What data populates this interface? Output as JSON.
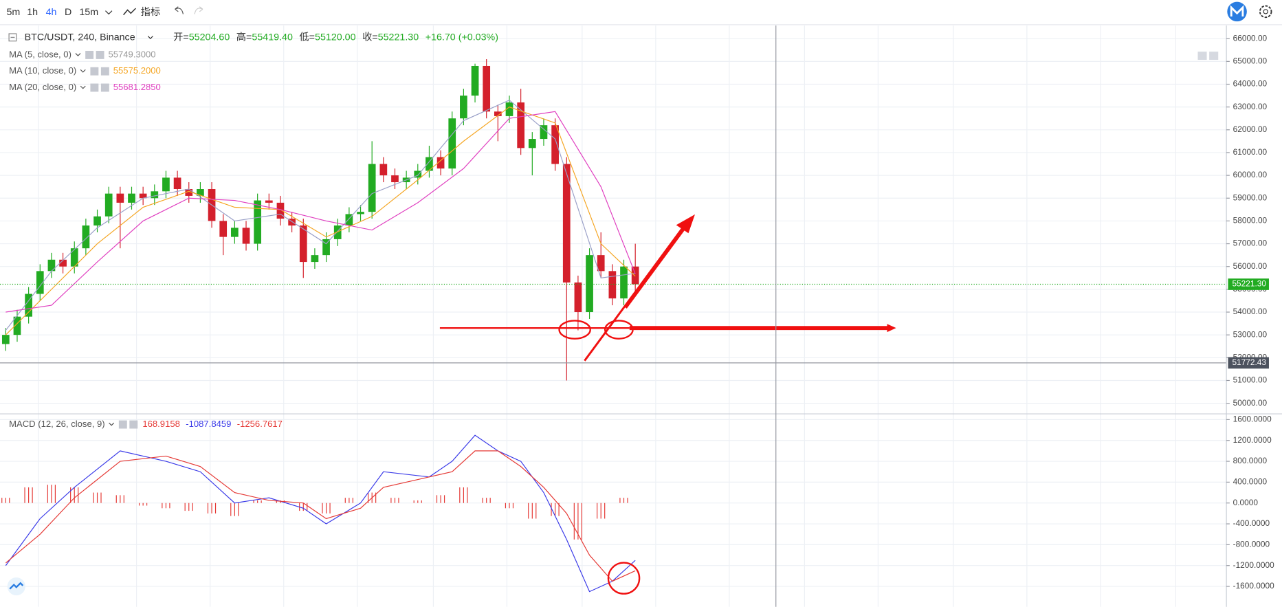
{
  "toolbar": {
    "intervals": [
      "5m",
      "1h",
      "4h",
      "D",
      "15m"
    ],
    "indicators": "指标"
  },
  "header": {
    "symbol": "BTC/USDT, 240, Binance",
    "ohlc": [
      {
        "label": "开=",
        "value": "55204.60"
      },
      {
        "label": "高=",
        "value": "55419.40"
      },
      {
        "label": "低=",
        "value": "55120.00"
      },
      {
        "label": "收=",
        "value": "55221.30"
      }
    ],
    "change": "+16.70 (+0.03%)"
  },
  "chart_data": [
    {
      "type": "candlestick",
      "up_color": "#22ab22",
      "down_color": "#d4202c",
      "open": [
        52600,
        53000,
        53800,
        54800,
        55800,
        56300,
        56000,
        56800,
        57800,
        58200,
        59200,
        58800,
        59200,
        59000,
        59300,
        59900,
        59400,
        59100,
        59400,
        58000,
        57300,
        57700,
        57000,
        58900,
        58800,
        58100,
        57800,
        56200,
        56500,
        57200,
        57800,
        58300,
        58400,
        60500,
        60000,
        59700,
        59900,
        60200,
        60800,
        60300,
        62500,
        63500,
        64800,
        62800,
        62600,
        63200,
        61200,
        61600,
        62200,
        60500,
        55300,
        54000,
        56500,
        55800,
        54600,
        56000
      ],
      "high": [
        53300,
        54100,
        55100,
        56100,
        56600,
        56600,
        57100,
        58100,
        58500,
        59500,
        59500,
        59500,
        59500,
        59600,
        60200,
        60200,
        59700,
        59700,
        59700,
        58300,
        58000,
        58000,
        59200,
        59200,
        59100,
        58400,
        58100,
        56800,
        57500,
        58100,
        58600,
        58700,
        61500,
        60800,
        60300,
        60200,
        60500,
        61300,
        61100,
        62800,
        63800,
        64900,
        65100,
        63100,
        63500,
        63800,
        61900,
        62500,
        62500,
        60800,
        55600,
        56800,
        57500,
        56100,
        56300,
        57000
      ],
      "low": [
        52300,
        52700,
        53500,
        54500,
        55500,
        55700,
        55700,
        56500,
        57500,
        57900,
        56800,
        58500,
        58700,
        58700,
        59000,
        59100,
        58800,
        58800,
        57700,
        56500,
        57000,
        56700,
        56700,
        58500,
        57800,
        57500,
        55500,
        55900,
        56200,
        56900,
        57500,
        58000,
        58100,
        59700,
        59400,
        59400,
        59600,
        59900,
        60000,
        60000,
        62200,
        63200,
        62500,
        61500,
        62300,
        60900,
        60000,
        61300,
        60200,
        51000,
        53200,
        53700,
        55500,
        54300,
        54300,
        54900
      ],
      "close": [
        53000,
        53800,
        54800,
        55800,
        56300,
        56000,
        56800,
        57800,
        58200,
        59200,
        58800,
        59200,
        59000,
        59300,
        59900,
        59400,
        59100,
        59400,
        58000,
        57300,
        57700,
        57000,
        58900,
        58800,
        58100,
        57800,
        56200,
        56500,
        57200,
        57800,
        58300,
        58400,
        60500,
        60000,
        59700,
        59900,
        60200,
        60800,
        60300,
        62500,
        63500,
        64800,
        62800,
        62600,
        63200,
        61200,
        61600,
        62200,
        60500,
        55300,
        54000,
        56500,
        55800,
        54600,
        56000,
        55221.3
      ],
      "series": [
        {
          "name": "MA (5, close, 0)",
          "color": "#9aa0c8",
          "legend_value": {
            "value": 55749.3,
            "label": "55749.3000"
          },
          "legend_color": "#999999",
          "x": [
            0,
            4,
            8,
            12,
            16,
            20,
            24,
            28,
            32,
            36,
            40,
            44,
            48,
            52,
            55
          ],
          "values": [
            53200,
            55800,
            57700,
            59000,
            59400,
            58000,
            58300,
            57000,
            59200,
            60000,
            62400,
            63300,
            61600,
            55500,
            55700
          ]
        },
        {
          "name": "MA (10, close, 0)",
          "color": "#f5a623",
          "legend_value": {
            "value": 55575.2,
            "label": "55575.2000"
          },
          "legend_color": "#f5a623",
          "x": [
            0,
            4,
            8,
            12,
            16,
            20,
            24,
            28,
            32,
            36,
            40,
            44,
            48,
            52,
            55
          ],
          "values": [
            53000,
            55000,
            57000,
            58600,
            59300,
            58600,
            58500,
            57300,
            58200,
            59800,
            61500,
            63000,
            62300,
            57000,
            55575
          ]
        },
        {
          "name": "MA (20, close, 0)",
          "color": "#e040c0",
          "legend_value": {
            "value": 55681.285,
            "label": "55681.2850"
          },
          "legend_color": "#e040c0",
          "x": [
            0,
            4,
            8,
            12,
            16,
            20,
            24,
            28,
            32,
            36,
            40,
            44,
            48,
            52,
            55
          ],
          "values": [
            54000,
            54300,
            56200,
            58000,
            59000,
            58900,
            58500,
            58000,
            57600,
            58800,
            60300,
            62500,
            62800,
            59500,
            55681
          ]
        }
      ],
      "last_price": {
        "value": 55221.3,
        "label": "55221.30",
        "color": "#22ab22"
      },
      "crosshair": {
        "value": 51772.43,
        "label": "51772.43"
      },
      "ylim": [
        49570,
        66540
      ],
      "yticks": [
        {
          "value": 50000,
          "label": "50000.00"
        },
        {
          "value": 51000,
          "label": "51000.00"
        },
        {
          "value": 52000,
          "label": "52000.00"
        },
        {
          "value": 53000,
          "label": "53000.00"
        },
        {
          "value": 54000,
          "label": "54000.00"
        },
        {
          "value": 55000,
          "label": "55000.00"
        },
        {
          "value": 56000,
          "label": "56000.00"
        },
        {
          "value": 57000,
          "label": "57000.00"
        },
        {
          "value": 58000,
          "label": "58000.00"
        },
        {
          "value": 59000,
          "label": "59000.00"
        },
        {
          "value": 60000,
          "label": "60000.00"
        },
        {
          "value": 61000,
          "label": "61000.00"
        },
        {
          "value": 62000,
          "label": "62000.00"
        },
        {
          "value": 63000,
          "label": "63000.00"
        },
        {
          "value": 64000,
          "label": "64000.00"
        },
        {
          "value": 65000,
          "label": "65000.00"
        },
        {
          "value": 66000,
          "label": "66000.00"
        }
      ],
      "grid": true
    },
    {
      "type": "macd",
      "title": "MACD (12, 26, close, 9)",
      "series": [
        {
          "style": "histogram",
          "color": "#e53935",
          "legend_value": {
            "value": 168.9158,
            "label": "168.9158"
          },
          "x": [
            0,
            2,
            4,
            6,
            8,
            10,
            12,
            14,
            16,
            18,
            20,
            22,
            24,
            26,
            28,
            30,
            32,
            34,
            36,
            38,
            40,
            42,
            44,
            46,
            48,
            50,
            52,
            54
          ],
          "values": [
            100,
            300,
            350,
            300,
            200,
            150,
            -50,
            -100,
            -150,
            -200,
            -250,
            50,
            50,
            -150,
            -200,
            100,
            200,
            100,
            50,
            150,
            300,
            100,
            -100,
            -300,
            -250,
            -700,
            -300,
            100
          ]
        },
        {
          "style": "line",
          "color": "#3a3ae8",
          "legend_value": {
            "value": -1087.8459,
            "label": "-1087.8459"
          },
          "x": [
            0,
            3,
            6,
            10,
            14,
            17,
            20,
            23,
            26,
            28,
            31,
            33,
            37,
            39,
            41,
            43,
            45,
            47,
            49,
            51,
            53,
            55
          ],
          "values": [
            -1200,
            -300,
            300,
            1000,
            800,
            600,
            0,
            100,
            -100,
            -400,
            0,
            600,
            500,
            800,
            1300,
            1000,
            800,
            200,
            -700,
            -1700,
            -1500,
            -1100
          ]
        },
        {
          "style": "line",
          "color": "#e53935",
          "legend_value": {
            "value": -1256.7617,
            "label": "-1256.7617"
          },
          "x": [
            0,
            3,
            6,
            10,
            14,
            17,
            20,
            23,
            26,
            28,
            31,
            33,
            37,
            39,
            41,
            43,
            45,
            47,
            49,
            51,
            53,
            55
          ],
          "values": [
            -1150,
            -600,
            100,
            800,
            900,
            700,
            200,
            50,
            0,
            -300,
            -100,
            300,
            500,
            600,
            1000,
            1000,
            700,
            300,
            -200,
            -1000,
            -1500,
            -1300
          ]
        }
      ],
      "ylim": [
        -1992,
        1694
      ],
      "yticks": [
        {
          "value": 1600,
          "label": "1600.0000"
        },
        {
          "value": 1200,
          "label": "1200.0000"
        },
        {
          "value": 800,
          "label": "800.0000"
        },
        {
          "value": 400,
          "label": "400.0000"
        },
        {
          "value": 0,
          "label": "0.0000"
        },
        {
          "value": -400,
          "label": "-400.0000"
        },
        {
          "value": -800,
          "label": "-800.0000"
        },
        {
          "value": -1200,
          "label": "-1200.0000"
        },
        {
          "value": -1600,
          "label": "-1600.0000"
        }
      ],
      "grid": true
    }
  ]
}
